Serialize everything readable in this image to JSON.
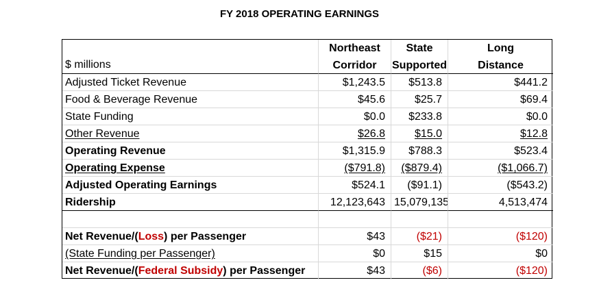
{
  "title": "FY 2018 OPERATING EARNINGS",
  "header": {
    "unit_label": "$ millions",
    "columns": [
      {
        "line1": "Northeast",
        "line2": "Corridor"
      },
      {
        "line1": "State",
        "line2": "Supported"
      },
      {
        "line1": "Long",
        "line2": "Distance"
      }
    ]
  },
  "rows": [
    {
      "label": "Adjusted Ticket Revenue",
      "values": [
        "$1,243.5",
        "$513.8",
        "$441.2"
      ]
    },
    {
      "label": "Food & Beverage Revenue",
      "values": [
        "$45.6",
        "$25.7",
        "$69.4"
      ]
    },
    {
      "label": "State Funding",
      "values": [
        "$0.0",
        "$233.8",
        "$0.0"
      ]
    },
    {
      "label": "Other Revenue",
      "values": [
        "$26.8",
        "$15.0",
        "$12.8"
      ]
    },
    {
      "label": "Operating Revenue",
      "values": [
        "$1,315.9",
        "$788.3",
        "$523.4"
      ]
    },
    {
      "label": "Operating Expense",
      "values": [
        "($791.8)",
        "($879.4)",
        "($1,066.7)"
      ]
    },
    {
      "label": "Adjusted Operating Earnings",
      "values": [
        "$524.1",
        "($91.1)",
        "($543.2)"
      ]
    },
    {
      "label": "Ridership",
      "values": [
        "12,123,643",
        "15,079,135",
        "4,513,474"
      ]
    }
  ],
  "per_passenger": [
    {
      "label_pre": "Net Revenue/(",
      "label_accent": "Loss",
      "label_post": ") per Passenger",
      "values": [
        "$43",
        "($21)",
        "($120)"
      ]
    },
    {
      "label": "(State Funding per Passenger)",
      "values": [
        "$0",
        "$15",
        "$0"
      ]
    },
    {
      "label_pre": "Net Revenue/(",
      "label_accent": "Federal Subsidy",
      "label_post": ") per Passenger",
      "values": [
        "$43",
        "($6)",
        "($120)"
      ]
    }
  ],
  "colors": {
    "accent_red": "#c00000",
    "grid_line": "#d8d8d8"
  }
}
